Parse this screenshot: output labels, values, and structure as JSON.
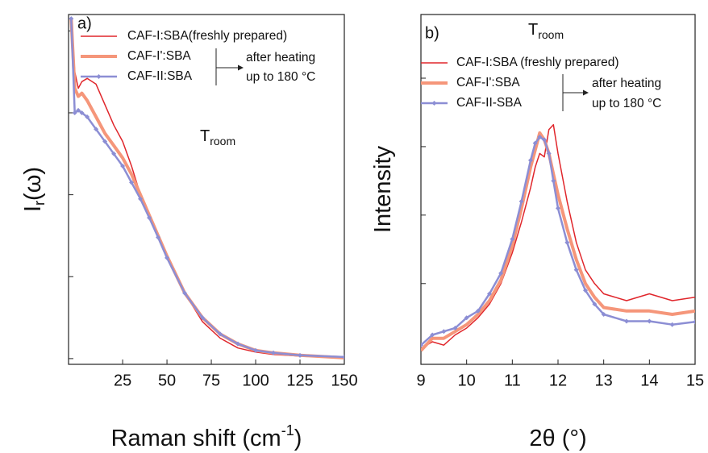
{
  "chart_data": [
    {
      "type": "line",
      "panel_label": "a)",
      "x_label_parts": [
        "Raman shift (cm",
        "-1",
        ")"
      ],
      "y_label_parts": [
        "I",
        "r",
        "(ω)"
      ],
      "annotation_main": "T",
      "annotation_sub": "room",
      "legend_note": [
        "after heating",
        "up to 180 °C"
      ],
      "x": [
        -4,
        -2,
        0,
        2,
        5,
        10,
        15,
        20,
        25,
        30,
        35,
        40,
        45,
        50,
        60,
        70,
        80,
        90,
        100,
        110,
        125,
        150
      ],
      "series": [
        {
          "name": "CAF-I:SBA(freshly prepared)",
          "color": "#e0262b",
          "values": [
            4.15,
            3.5,
            3.3,
            3.38,
            3.42,
            3.35,
            3.1,
            2.85,
            2.65,
            2.35,
            2.0,
            1.75,
            1.5,
            1.25,
            0.8,
            0.45,
            0.25,
            0.13,
            0.08,
            0.05,
            0.03,
            0.01
          ]
        },
        {
          "name": "CAF-I':SBA",
          "color": "#f5967a",
          "values": [
            4.15,
            3.3,
            3.2,
            3.24,
            3.15,
            2.95,
            2.75,
            2.6,
            2.45,
            2.25,
            2.0,
            1.75,
            1.5,
            1.25,
            0.8,
            0.5,
            0.3,
            0.18,
            0.1,
            0.07,
            0.04,
            0.01
          ]
        },
        {
          "name": "CAF-II:SBA",
          "color": "#8c8ed4",
          "values": [
            4.15,
            3.0,
            3.03,
            3.0,
            2.95,
            2.8,
            2.65,
            2.5,
            2.35,
            2.15,
            1.95,
            1.72,
            1.48,
            1.23,
            0.8,
            0.5,
            0.3,
            0.18,
            0.1,
            0.07,
            0.04,
            0.02
          ]
        }
      ],
      "xlim": [
        -5.5,
        150
      ],
      "xticks": [
        25,
        50,
        75,
        100,
        125,
        150
      ],
      "ylim": [
        -0.07,
        4.2
      ],
      "yticks": [
        0,
        1,
        2,
        3,
        4
      ]
    },
    {
      "type": "line",
      "panel_label": "b)",
      "x_label_parts": [
        "2θ (°)"
      ],
      "y_label_parts": [
        "Intensity"
      ],
      "annotation_main": "T",
      "annotation_sub": "room",
      "legend_note": [
        "after heating",
        "up to 180 °C"
      ],
      "x": [
        9,
        9.25,
        9.5,
        9.75,
        10,
        10.25,
        10.5,
        10.75,
        11,
        11.2,
        11.4,
        11.5,
        11.6,
        11.7,
        11.8,
        11.9,
        12,
        12.2,
        12.4,
        12.6,
        12.8,
        13,
        13.5,
        14,
        14.5,
        15
      ],
      "series": [
        {
          "name": "CAF-I:SBA (freshly prepared)",
          "color": "#e0262b",
          "values": [
            0.05,
            0.15,
            0.1,
            0.25,
            0.35,
            0.5,
            0.7,
            1.0,
            1.45,
            1.9,
            2.4,
            2.7,
            2.9,
            2.85,
            3.25,
            3.32,
            2.9,
            2.2,
            1.6,
            1.2,
            1.0,
            0.85,
            0.75,
            0.85,
            0.75,
            0.8
          ]
        },
        {
          "name": "CAF-I':SBA",
          "color": "#f5967a",
          "values": [
            0.02,
            0.2,
            0.2,
            0.3,
            0.4,
            0.55,
            0.75,
            1.05,
            1.55,
            2.1,
            2.7,
            2.95,
            3.2,
            3.1,
            2.9,
            2.6,
            2.3,
            1.8,
            1.35,
            1.0,
            0.8,
            0.65,
            0.6,
            0.6,
            0.55,
            0.6
          ]
        },
        {
          "name": "CAF-II-SBA",
          "color": "#8c8ed4",
          "values": [
            0.1,
            0.25,
            0.3,
            0.35,
            0.5,
            0.6,
            0.85,
            1.15,
            1.65,
            2.2,
            2.8,
            3.05,
            3.14,
            3.1,
            2.9,
            2.5,
            2.1,
            1.6,
            1.2,
            0.9,
            0.7,
            0.55,
            0.45,
            0.45,
            0.4,
            0.44
          ]
        }
      ],
      "xlim": [
        9,
        15
      ],
      "xticks": [
        9,
        10,
        11,
        12,
        13,
        14,
        15
      ],
      "ylim": [
        -0.18,
        4.93
      ],
      "yticks": [
        1,
        2,
        3,
        4
      ]
    }
  ]
}
